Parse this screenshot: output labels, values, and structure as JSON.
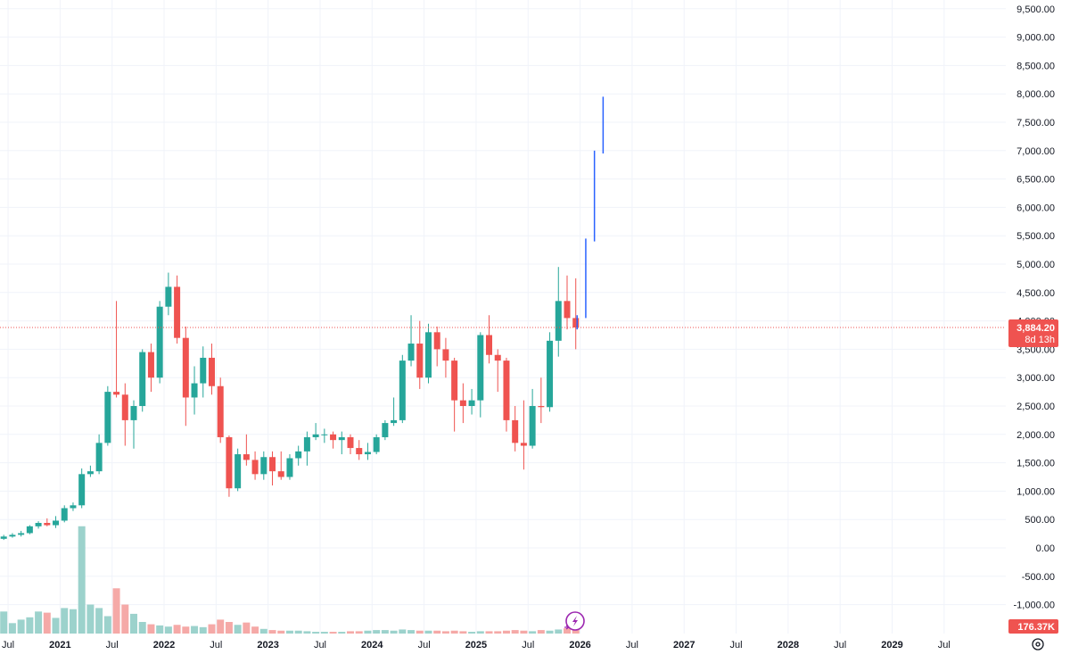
{
  "chart_data": {
    "type": "candlestick",
    "y_axis": {
      "ticks": [
        9500,
        9000,
        8500,
        8000,
        7500,
        7000,
        6500,
        6000,
        5500,
        5000,
        4500,
        4000,
        3500,
        3000,
        2500,
        2000,
        1500,
        1000,
        500,
        0,
        -500,
        -1000
      ],
      "tick_labels": [
        "9,500.00",
        "9,000.00",
        "8,500.00",
        "8,000.00",
        "7,500.00",
        "7,000.00",
        "6,500.00",
        "6,000.00",
        "5,500.00",
        "5,000.00",
        "4,500.00",
        "4,000.00",
        "3,500.00",
        "3,000.00",
        "2,500.00",
        "2,000.00",
        "1,500.00",
        "1,000.00",
        "500.00",
        "0.00",
        "-500.00",
        "-1,000.00"
      ],
      "range": [
        -1300,
        9700
      ]
    },
    "x_axis": {
      "labels": [
        {
          "text": "Jul",
          "year": false,
          "index": 0
        },
        {
          "text": "2021",
          "year": true,
          "index": 6
        },
        {
          "text": "Jul",
          "year": false,
          "index": 12
        },
        {
          "text": "2022",
          "year": true,
          "index": 18
        },
        {
          "text": "Jul",
          "year": false,
          "index": 24
        },
        {
          "text": "2023",
          "year": true,
          "index": 30
        },
        {
          "text": "Jul",
          "year": false,
          "index": 36
        },
        {
          "text": "2024",
          "year": true,
          "index": 42
        },
        {
          "text": "Jul",
          "year": false,
          "index": 48
        },
        {
          "text": "2025",
          "year": true,
          "index": 54
        },
        {
          "text": "Jul",
          "year": false,
          "index": 60
        },
        {
          "text": "2026",
          "year": true,
          "index": 66
        },
        {
          "text": "Jul",
          "year": false,
          "index": 72
        },
        {
          "text": "2027",
          "year": true,
          "index": 78
        },
        {
          "text": "Jul",
          "year": false,
          "index": 84
        },
        {
          "text": "2028",
          "year": true,
          "index": 90
        },
        {
          "text": "Jul",
          "year": false,
          "index": 96
        },
        {
          "text": "2029",
          "year": true,
          "index": 102
        },
        {
          "text": "Jul",
          "year": false,
          "index": 108
        }
      ]
    },
    "candles": [
      {
        "o": 160,
        "h": 230,
        "l": 140,
        "c": 200
      },
      {
        "o": 200,
        "h": 260,
        "l": 180,
        "c": 230
      },
      {
        "o": 230,
        "h": 300,
        "l": 200,
        "c": 260
      },
      {
        "o": 260,
        "h": 400,
        "l": 240,
        "c": 380
      },
      {
        "o": 380,
        "h": 470,
        "l": 340,
        "c": 440
      },
      {
        "o": 440,
        "h": 520,
        "l": 380,
        "c": 400
      },
      {
        "o": 400,
        "h": 560,
        "l": 350,
        "c": 480
      },
      {
        "o": 480,
        "h": 750,
        "l": 450,
        "c": 700
      },
      {
        "o": 700,
        "h": 800,
        "l": 650,
        "c": 750
      },
      {
        "o": 750,
        "h": 1400,
        "l": 700,
        "c": 1300
      },
      {
        "o": 1300,
        "h": 1450,
        "l": 1250,
        "c": 1350
      },
      {
        "o": 1350,
        "h": 2000,
        "l": 1300,
        "c": 1850
      },
      {
        "o": 1850,
        "h": 2850,
        "l": 1800,
        "c": 2750
      },
      {
        "o": 2750,
        "h": 4350,
        "l": 2650,
        "c": 2700
      },
      {
        "o": 2700,
        "h": 2900,
        "l": 1800,
        "c": 2250
      },
      {
        "o": 2250,
        "h": 2600,
        "l": 1750,
        "c": 2500
      },
      {
        "o": 2500,
        "h": 3500,
        "l": 2400,
        "c": 3450
      },
      {
        "o": 3450,
        "h": 3600,
        "l": 2750,
        "c": 3000
      },
      {
        "o": 3000,
        "h": 4350,
        "l": 2900,
        "c": 4250
      },
      {
        "o": 4250,
        "h": 4850,
        "l": 4100,
        "c": 4600
      },
      {
        "o": 4600,
        "h": 4800,
        "l": 3600,
        "c": 3700
      },
      {
        "o": 3700,
        "h": 3900,
        "l": 2150,
        "c": 2650
      },
      {
        "o": 2650,
        "h": 3200,
        "l": 2350,
        "c": 2900
      },
      {
        "o": 2900,
        "h": 3550,
        "l": 2650,
        "c": 3350
      },
      {
        "o": 3350,
        "h": 3600,
        "l": 2700,
        "c": 2850
      },
      {
        "o": 2850,
        "h": 3000,
        "l": 1850,
        "c": 1950
      },
      {
        "o": 1950,
        "h": 1980,
        "l": 900,
        "c": 1050
      },
      {
        "o": 1050,
        "h": 1750,
        "l": 1000,
        "c": 1650
      },
      {
        "o": 1650,
        "h": 2000,
        "l": 1450,
        "c": 1550
      },
      {
        "o": 1550,
        "h": 1700,
        "l": 1200,
        "c": 1300
      },
      {
        "o": 1300,
        "h": 1700,
        "l": 1200,
        "c": 1600
      },
      {
        "o": 1600,
        "h": 1700,
        "l": 1100,
        "c": 1350
      },
      {
        "o": 1350,
        "h": 1700,
        "l": 1200,
        "c": 1250
      },
      {
        "o": 1250,
        "h": 1650,
        "l": 1200,
        "c": 1580
      },
      {
        "o": 1580,
        "h": 1800,
        "l": 1450,
        "c": 1700
      },
      {
        "o": 1700,
        "h": 2050,
        "l": 1450,
        "c": 1950
      },
      {
        "o": 1950,
        "h": 2200,
        "l": 1900,
        "c": 2000
      },
      {
        "o": 2000,
        "h": 2100,
        "l": 1850,
        "c": 2000
      },
      {
        "o": 2000,
        "h": 2050,
        "l": 1750,
        "c": 1900
      },
      {
        "o": 1900,
        "h": 2050,
        "l": 1650,
        "c": 1950
      },
      {
        "o": 1950,
        "h": 2000,
        "l": 1650,
        "c": 1760
      },
      {
        "o": 1760,
        "h": 1900,
        "l": 1550,
        "c": 1650
      },
      {
        "o": 1650,
        "h": 1850,
        "l": 1550,
        "c": 1690
      },
      {
        "o": 1690,
        "h": 2000,
        "l": 1650,
        "c": 1950
      },
      {
        "o": 1950,
        "h": 2250,
        "l": 1900,
        "c": 2200
      },
      {
        "o": 2200,
        "h": 2650,
        "l": 2150,
        "c": 2250
      },
      {
        "o": 2250,
        "h": 3400,
        "l": 2200,
        "c": 3300
      },
      {
        "o": 3300,
        "h": 4100,
        "l": 3200,
        "c": 3600
      },
      {
        "o": 3600,
        "h": 4000,
        "l": 2800,
        "c": 3000
      },
      {
        "o": 3000,
        "h": 3950,
        "l": 2900,
        "c": 3800
      },
      {
        "o": 3800,
        "h": 3900,
        "l": 3200,
        "c": 3500
      },
      {
        "o": 3500,
        "h": 3700,
        "l": 3000,
        "c": 3300
      },
      {
        "o": 3300,
        "h": 3350,
        "l": 2050,
        "c": 2600
      },
      {
        "o": 2600,
        "h": 2900,
        "l": 2200,
        "c": 2500
      },
      {
        "o": 2500,
        "h": 2800,
        "l": 2350,
        "c": 2600
      },
      {
        "o": 2600,
        "h": 3800,
        "l": 2300,
        "c": 3750
      },
      {
        "o": 3750,
        "h": 4100,
        "l": 3250,
        "c": 3400
      },
      {
        "o": 3400,
        "h": 3500,
        "l": 2750,
        "c": 3300
      },
      {
        "o": 3300,
        "h": 3350,
        "l": 2050,
        "c": 2250
      },
      {
        "o": 2250,
        "h": 2500,
        "l": 1700,
        "c": 1850
      },
      {
        "o": 1850,
        "h": 2600,
        "l": 1380,
        "c": 1800
      },
      {
        "o": 1800,
        "h": 2800,
        "l": 1750,
        "c": 2500
      },
      {
        "o": 2500,
        "h": 3000,
        "l": 2200,
        "c": 2480
      },
      {
        "o": 2480,
        "h": 3800,
        "l": 2400,
        "c": 3650
      },
      {
        "o": 3650,
        "h": 4950,
        "l": 3370,
        "c": 4350
      },
      {
        "o": 4350,
        "h": 4800,
        "l": 3850,
        "c": 4050
      },
      {
        "o": 4050,
        "h": 4750,
        "l": 3500,
        "c": 3884.2
      }
    ],
    "projection": [
      {
        "idx": 66,
        "from": 3850,
        "to": 4100
      },
      {
        "idx": 67,
        "from": 4050,
        "to": 5450
      },
      {
        "idx": 68,
        "from": 5400,
        "to": 7000
      },
      {
        "idx": 69,
        "from": 6950,
        "to": 7950
      }
    ],
    "volume": {
      "values": [
        0.38,
        0.18,
        0.24,
        0.28,
        0.38,
        0.36,
        0.27,
        0.44,
        0.42,
        1.85,
        0.5,
        0.44,
        0.3,
        0.78,
        0.5,
        0.34,
        0.2,
        0.16,
        0.14,
        0.12,
        0.15,
        0.12,
        0.13,
        0.11,
        0.16,
        0.24,
        0.2,
        0.15,
        0.19,
        0.12,
        0.08,
        0.06,
        0.05,
        0.05,
        0.05,
        0.04,
        0.03,
        0.03,
        0.03,
        0.03,
        0.04,
        0.04,
        0.05,
        0.06,
        0.06,
        0.05,
        0.07,
        0.06,
        0.05,
        0.05,
        0.05,
        0.04,
        0.05,
        0.04,
        0.03,
        0.04,
        0.04,
        0.04,
        0.05,
        0.06,
        0.05,
        0.04,
        0.06,
        0.05,
        0.07,
        0.09,
        0.08
      ],
      "unit_note": "",
      "current_label": "176.37K",
      "max": 2.0
    },
    "current_price": {
      "value": 3884.2,
      "label": "3,884.20",
      "countdown": "8d 13h"
    },
    "colors": {
      "up": "#26a69a",
      "down": "#ef5350",
      "up_volume": "#9cd2cc",
      "down_volume": "#f5a9a7",
      "projection": "#2962ff",
      "price_line": "#ef5350",
      "grid": "#f0f3fa",
      "icon": "#9c27b0"
    },
    "grid": true,
    "icons": [
      "lightning-bolt-icon",
      "settings-gear-icon"
    ]
  }
}
